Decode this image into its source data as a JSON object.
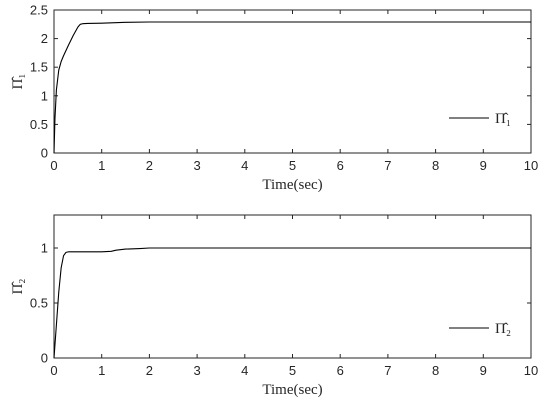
{
  "chart_data": [
    {
      "type": "line",
      "xlabel": "Time(sec)",
      "ylabel": "Π̂₁",
      "xlim": [
        0,
        10
      ],
      "ylim": [
        0,
        2.5
      ],
      "xticks": [
        "0",
        "1",
        "2",
        "3",
        "4",
        "5",
        "6",
        "7",
        "8",
        "9",
        "10"
      ],
      "yticks": [
        "0",
        "0.5",
        "1",
        "1.5",
        "2",
        "2.5"
      ],
      "grid": false,
      "legend_position": "right",
      "series": [
        {
          "name": "Π̂₁",
          "color": "#000000",
          "x": [
            0,
            0.02,
            0.05,
            0.1,
            0.15,
            0.2,
            0.3,
            0.4,
            0.5,
            0.55,
            0.6,
            0.7,
            1.0,
            1.5,
            2.0,
            3.0,
            4.0,
            5.0,
            6.0,
            7.0,
            8.0,
            9.0,
            10.0
          ],
          "y": [
            0,
            0.6,
            1.1,
            1.45,
            1.6,
            1.7,
            1.88,
            2.05,
            2.2,
            2.25,
            2.26,
            2.265,
            2.27,
            2.285,
            2.29,
            2.29,
            2.29,
            2.29,
            2.29,
            2.29,
            2.29,
            2.29,
            2.29
          ]
        }
      ]
    },
    {
      "type": "line",
      "xlabel": "Time(sec)",
      "ylabel": "Π̂₂",
      "xlim": [
        0,
        10
      ],
      "ylim": [
        0,
        1.3
      ],
      "xticks": [
        "0",
        "1",
        "2",
        "3",
        "4",
        "5",
        "6",
        "7",
        "8",
        "9",
        "10"
      ],
      "yticks": [
        "0",
        "0.5",
        "1"
      ],
      "grid": false,
      "legend_position": "bottom-right",
      "series": [
        {
          "name": "Π̂₂",
          "color": "#000000",
          "x": [
            0,
            0.05,
            0.1,
            0.15,
            0.2,
            0.25,
            0.3,
            0.4,
            0.6,
            1.0,
            1.2,
            1.3,
            1.5,
            1.8,
            2.0,
            3.0,
            5.0,
            7.0,
            9.0,
            10.0
          ],
          "y": [
            0,
            0.3,
            0.6,
            0.82,
            0.93,
            0.96,
            0.965,
            0.965,
            0.965,
            0.965,
            0.97,
            0.98,
            0.99,
            0.995,
            1.0,
            1.0,
            1.0,
            1.0,
            1.0,
            1.0
          ]
        }
      ]
    }
  ]
}
